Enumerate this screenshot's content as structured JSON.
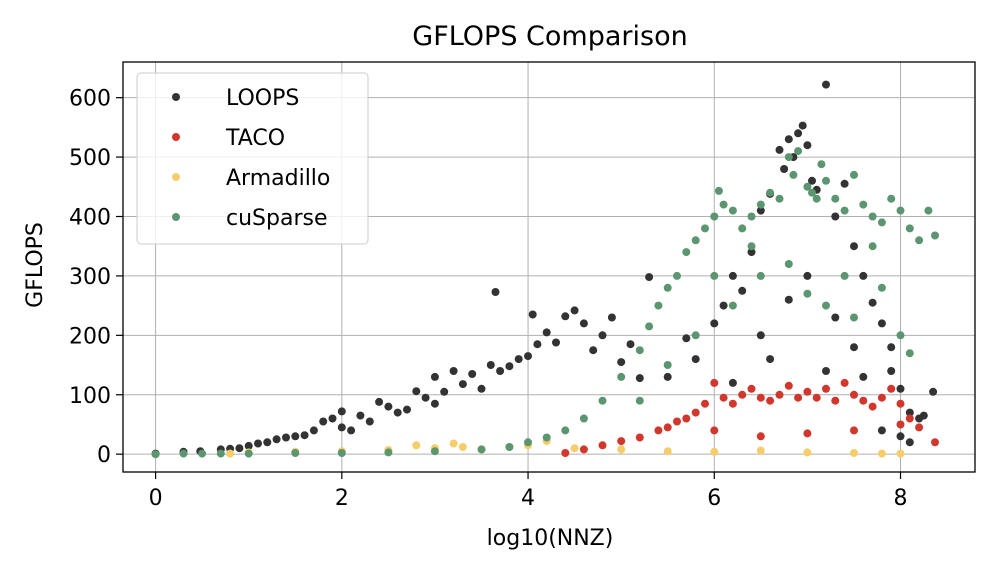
{
  "chart_data": {
    "type": "scatter",
    "title": "GFLOPS Comparison",
    "xlabel": "log10(NNZ)",
    "ylabel": "GFLOPS",
    "xlim": [
      -0.35,
      8.8
    ],
    "ylim": [
      -30,
      660
    ],
    "xticks": [
      0,
      2,
      4,
      6,
      8
    ],
    "yticks": [
      0,
      100,
      200,
      300,
      400,
      500,
      600
    ],
    "grid": true,
    "legend_position": "top-left",
    "series": [
      {
        "name": "LOOPS",
        "color": "#333333",
        "points": [
          [
            0,
            1
          ],
          [
            0.3,
            4
          ],
          [
            0.48,
            5
          ],
          [
            0.7,
            8
          ],
          [
            0.8,
            9
          ],
          [
            0.9,
            10
          ],
          [
            1.0,
            14
          ],
          [
            1.1,
            18
          ],
          [
            1.2,
            20
          ],
          [
            1.3,
            25
          ],
          [
            1.4,
            28
          ],
          [
            1.5,
            30
          ],
          [
            1.6,
            32
          ],
          [
            1.7,
            40
          ],
          [
            1.8,
            55
          ],
          [
            1.9,
            60
          ],
          [
            2.0,
            72
          ],
          [
            2.0,
            45
          ],
          [
            2.1,
            40
          ],
          [
            2.2,
            65
          ],
          [
            2.3,
            55
          ],
          [
            2.4,
            88
          ],
          [
            2.5,
            80
          ],
          [
            2.6,
            70
          ],
          [
            2.7,
            75
          ],
          [
            2.8,
            106
          ],
          [
            2.9,
            95
          ],
          [
            3.0,
            130
          ],
          [
            3.0,
            85
          ],
          [
            3.1,
            105
          ],
          [
            3.2,
            140
          ],
          [
            3.3,
            118
          ],
          [
            3.4,
            135
          ],
          [
            3.5,
            110
          ],
          [
            3.6,
            150
          ],
          [
            3.65,
            273
          ],
          [
            3.7,
            140
          ],
          [
            3.8,
            148
          ],
          [
            3.9,
            160
          ],
          [
            4.0,
            165
          ],
          [
            4.05,
            235
          ],
          [
            4.1,
            185
          ],
          [
            4.2,
            205
          ],
          [
            4.3,
            188
          ],
          [
            4.4,
            232
          ],
          [
            4.5,
            242
          ],
          [
            4.6,
            220
          ],
          [
            4.7,
            175
          ],
          [
            4.8,
            200
          ],
          [
            4.9,
            230
          ],
          [
            5.0,
            155
          ],
          [
            5.1,
            185
          ],
          [
            5.2,
            128
          ],
          [
            5.3,
            298
          ],
          [
            5.5,
            130
          ],
          [
            5.7,
            195
          ],
          [
            5.8,
            160
          ],
          [
            6.0,
            220
          ],
          [
            6.1,
            250
          ],
          [
            6.2,
            300
          ],
          [
            6.3,
            275
          ],
          [
            6.4,
            340
          ],
          [
            6.5,
            410
          ],
          [
            6.6,
            438
          ],
          [
            6.7,
            512
          ],
          [
            6.75,
            480
          ],
          [
            6.8,
            530
          ],
          [
            6.85,
            500
          ],
          [
            6.9,
            540
          ],
          [
            6.95,
            553
          ],
          [
            7.0,
            520
          ],
          [
            7.05,
            460
          ],
          [
            7.1,
            445
          ],
          [
            7.2,
            622
          ],
          [
            7.3,
            400
          ],
          [
            7.4,
            455
          ],
          [
            7.5,
            350
          ],
          [
            7.6,
            300
          ],
          [
            7.7,
            255
          ],
          [
            7.8,
            220
          ],
          [
            7.9,
            180
          ],
          [
            8.0,
            110
          ],
          [
            8.1,
            70
          ],
          [
            8.2,
            60
          ],
          [
            8.25,
            65
          ],
          [
            8.35,
            105
          ],
          [
            6.5,
            200
          ],
          [
            6.8,
            260
          ],
          [
            7.0,
            300
          ],
          [
            7.3,
            230
          ],
          [
            7.5,
            180
          ],
          [
            6.2,
            120
          ],
          [
            6.6,
            160
          ],
          [
            7.2,
            140
          ],
          [
            7.6,
            130
          ],
          [
            7.9,
            140
          ],
          [
            8.0,
            30
          ],
          [
            8.1,
            20
          ],
          [
            7.8,
            40
          ]
        ]
      },
      {
        "name": "TACO",
        "color": "#d1372c",
        "points": [
          [
            4.4,
            2
          ],
          [
            4.6,
            8
          ],
          [
            4.8,
            15
          ],
          [
            5.0,
            22
          ],
          [
            5.2,
            28
          ],
          [
            5.4,
            40
          ],
          [
            5.5,
            45
          ],
          [
            5.6,
            55
          ],
          [
            5.7,
            60
          ],
          [
            5.8,
            70
          ],
          [
            5.9,
            85
          ],
          [
            6.0,
            120
          ],
          [
            6.1,
            95
          ],
          [
            6.2,
            85
          ],
          [
            6.3,
            100
          ],
          [
            6.4,
            110
          ],
          [
            6.5,
            95
          ],
          [
            6.6,
            90
          ],
          [
            6.7,
            100
          ],
          [
            6.8,
            115
          ],
          [
            6.9,
            95
          ],
          [
            7.0,
            105
          ],
          [
            7.1,
            95
          ],
          [
            7.2,
            110
          ],
          [
            7.3,
            90
          ],
          [
            7.4,
            120
          ],
          [
            7.5,
            100
          ],
          [
            7.6,
            90
          ],
          [
            7.7,
            80
          ],
          [
            7.8,
            95
          ],
          [
            7.9,
            110
          ],
          [
            8.0,
            85
          ],
          [
            8.1,
            60
          ],
          [
            8.2,
            45
          ],
          [
            8.37,
            20
          ],
          [
            6.0,
            40
          ],
          [
            6.5,
            30
          ],
          [
            7.0,
            35
          ],
          [
            7.5,
            40
          ],
          [
            8.0,
            50
          ]
        ]
      },
      {
        "name": "Armadillo",
        "color": "#f5cd6a",
        "points": [
          [
            0.8,
            1
          ],
          [
            1.0,
            3
          ],
          [
            1.5,
            4
          ],
          [
            2.0,
            5
          ],
          [
            2.5,
            7
          ],
          [
            3.0,
            10
          ],
          [
            3.2,
            18
          ],
          [
            3.5,
            8
          ],
          [
            3.8,
            12
          ],
          [
            4.0,
            15
          ],
          [
            4.5,
            10
          ],
          [
            5.0,
            8
          ],
          [
            5.5,
            5
          ],
          [
            6.0,
            4
          ],
          [
            6.5,
            6
          ],
          [
            7.0,
            3
          ],
          [
            7.5,
            2
          ],
          [
            7.8,
            1
          ],
          [
            8.0,
            1
          ],
          [
            2.8,
            15
          ],
          [
            3.3,
            12
          ],
          [
            4.2,
            22
          ]
        ]
      },
      {
        "name": "cuSparse",
        "color": "#5b9670",
        "points": [
          [
            0,
            0
          ],
          [
            0.3,
            1
          ],
          [
            0.5,
            1
          ],
          [
            0.7,
            1
          ],
          [
            1.0,
            1
          ],
          [
            1.5,
            2
          ],
          [
            2.0,
            2
          ],
          [
            2.5,
            3
          ],
          [
            3.0,
            5
          ],
          [
            3.5,
            8
          ],
          [
            3.8,
            12
          ],
          [
            4.0,
            20
          ],
          [
            4.2,
            28
          ],
          [
            4.4,
            40
          ],
          [
            4.6,
            60
          ],
          [
            4.8,
            90
          ],
          [
            5.0,
            130
          ],
          [
            5.2,
            175
          ],
          [
            5.3,
            215
          ],
          [
            5.4,
            250
          ],
          [
            5.5,
            280
          ],
          [
            5.6,
            300
          ],
          [
            5.7,
            340
          ],
          [
            5.8,
            360
          ],
          [
            5.9,
            380
          ],
          [
            6.0,
            400
          ],
          [
            6.05,
            443
          ],
          [
            6.1,
            420
          ],
          [
            6.2,
            410
          ],
          [
            6.3,
            380
          ],
          [
            6.4,
            400
          ],
          [
            6.5,
            420
          ],
          [
            6.6,
            440
          ],
          [
            6.7,
            430
          ],
          [
            6.8,
            500
          ],
          [
            6.85,
            470
          ],
          [
            6.9,
            510
          ],
          [
            7.0,
            450
          ],
          [
            7.05,
            440
          ],
          [
            7.1,
            430
          ],
          [
            7.15,
            488
          ],
          [
            7.2,
            460
          ],
          [
            7.3,
            430
          ],
          [
            7.4,
            410
          ],
          [
            7.5,
            470
          ],
          [
            7.6,
            420
          ],
          [
            7.7,
            400
          ],
          [
            7.8,
            390
          ],
          [
            7.9,
            430
          ],
          [
            8.0,
            410
          ],
          [
            8.1,
            380
          ],
          [
            8.2,
            360
          ],
          [
            8.3,
            410
          ],
          [
            8.37,
            368
          ],
          [
            6.5,
            300
          ],
          [
            6.8,
            320
          ],
          [
            7.0,
            270
          ],
          [
            7.2,
            250
          ],
          [
            7.5,
            230
          ],
          [
            7.8,
            280
          ],
          [
            8.0,
            200
          ],
          [
            8.1,
            170
          ],
          [
            6.2,
            250
          ],
          [
            6.0,
            300
          ],
          [
            5.8,
            200
          ],
          [
            5.5,
            150
          ],
          [
            5.2,
            90
          ],
          [
            6.4,
            350
          ],
          [
            7.7,
            350
          ],
          [
            7.4,
            300
          ]
        ]
      }
    ]
  }
}
